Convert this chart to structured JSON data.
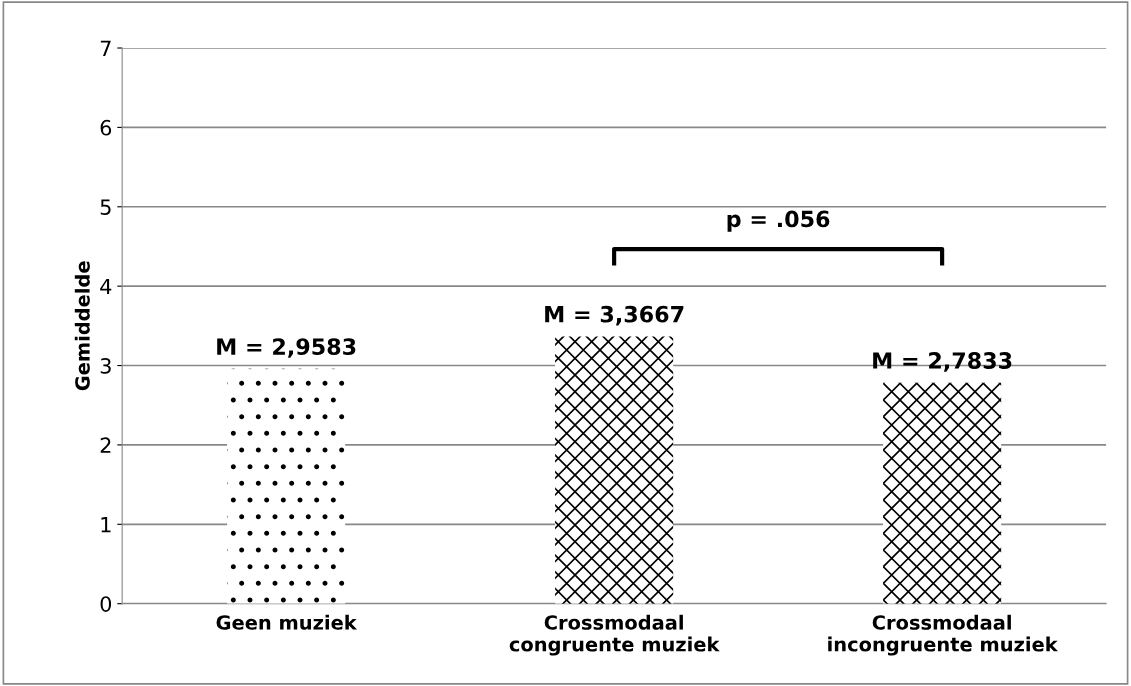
{
  "chart_data": {
    "type": "bar",
    "ylabel": "Gemiddelde",
    "categories": [
      "Geen muziek",
      "Crossmodaal\ncongruente muziek",
      "Crossmodaal\nincongruente muziek"
    ],
    "values": [
      2.9583,
      3.3667,
      2.7833
    ],
    "value_labels": [
      "M = 2,9583",
      "M = 3,3667",
      "M = 2,7833"
    ],
    "colors": [
      "#000000",
      "#000000",
      "#000000"
    ],
    "annotations": [
      "p = .056"
    ],
    "ylim": [
      0,
      7
    ],
    "yticks": [
      0,
      1,
      2,
      3,
      4,
      5,
      6,
      7
    ],
    "grid": "y",
    "legend": false
  }
}
